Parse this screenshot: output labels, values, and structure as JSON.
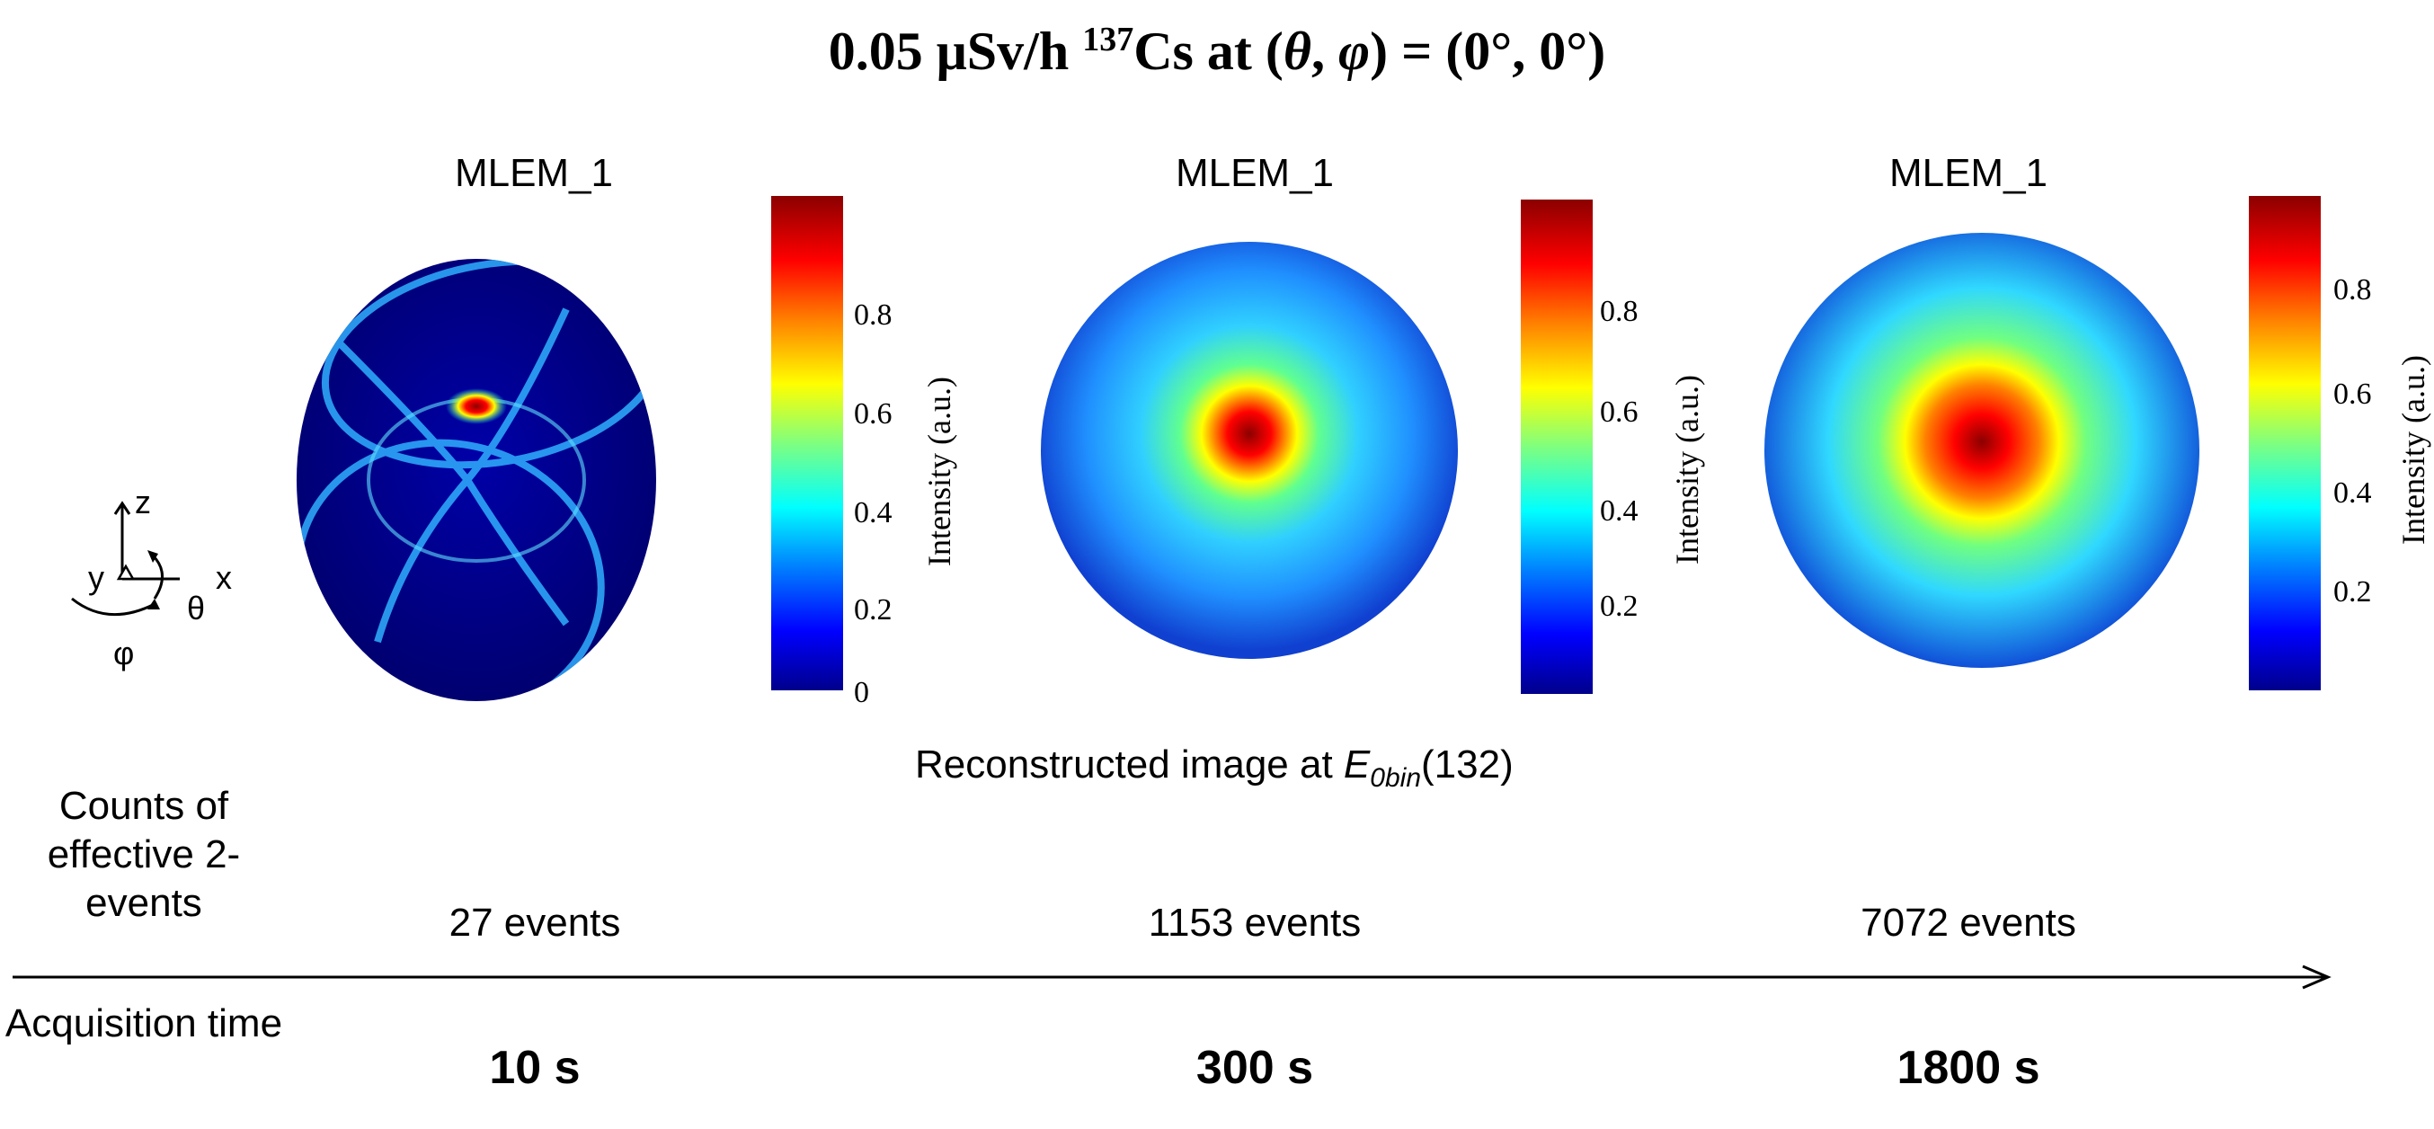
{
  "title": {
    "prefix": "0.05 μSv/h ",
    "isotope_mass": "137",
    "isotope": "Cs at (",
    "theta": "θ",
    "comma": ", ",
    "phi": "φ",
    "suffix": ") = (0°, 0°)"
  },
  "panels": [
    {
      "label": "MLEM_1",
      "events": "27 events",
      "time": "10 s"
    },
    {
      "label": "MLEM_1",
      "events": "1153 events",
      "time": "300 s"
    },
    {
      "label": "MLEM_1",
      "events": "7072 events",
      "time": "1800 s"
    }
  ],
  "colorbar": {
    "title": "Intensity (a.u.)",
    "ticks_full": [
      "0.8",
      "0.6",
      "0.4",
      "0.2",
      "0"
    ],
    "ticks": [
      "0.8",
      "0.6",
      "0.4",
      "0.2"
    ]
  },
  "recon": {
    "prefix": "Reconstructed image at ",
    "symbol": "E",
    "sub": "0bin",
    "suffix": "(132)"
  },
  "rows": {
    "counts_label": "Counts of effective 2-events",
    "acq_label": "Acquisition time"
  },
  "axes": {
    "z": "z",
    "y": "y",
    "x": "x",
    "theta": "θ",
    "phi": "φ"
  },
  "colors": {
    "dark_blue": "#00008b",
    "red": "#ff0000"
  }
}
